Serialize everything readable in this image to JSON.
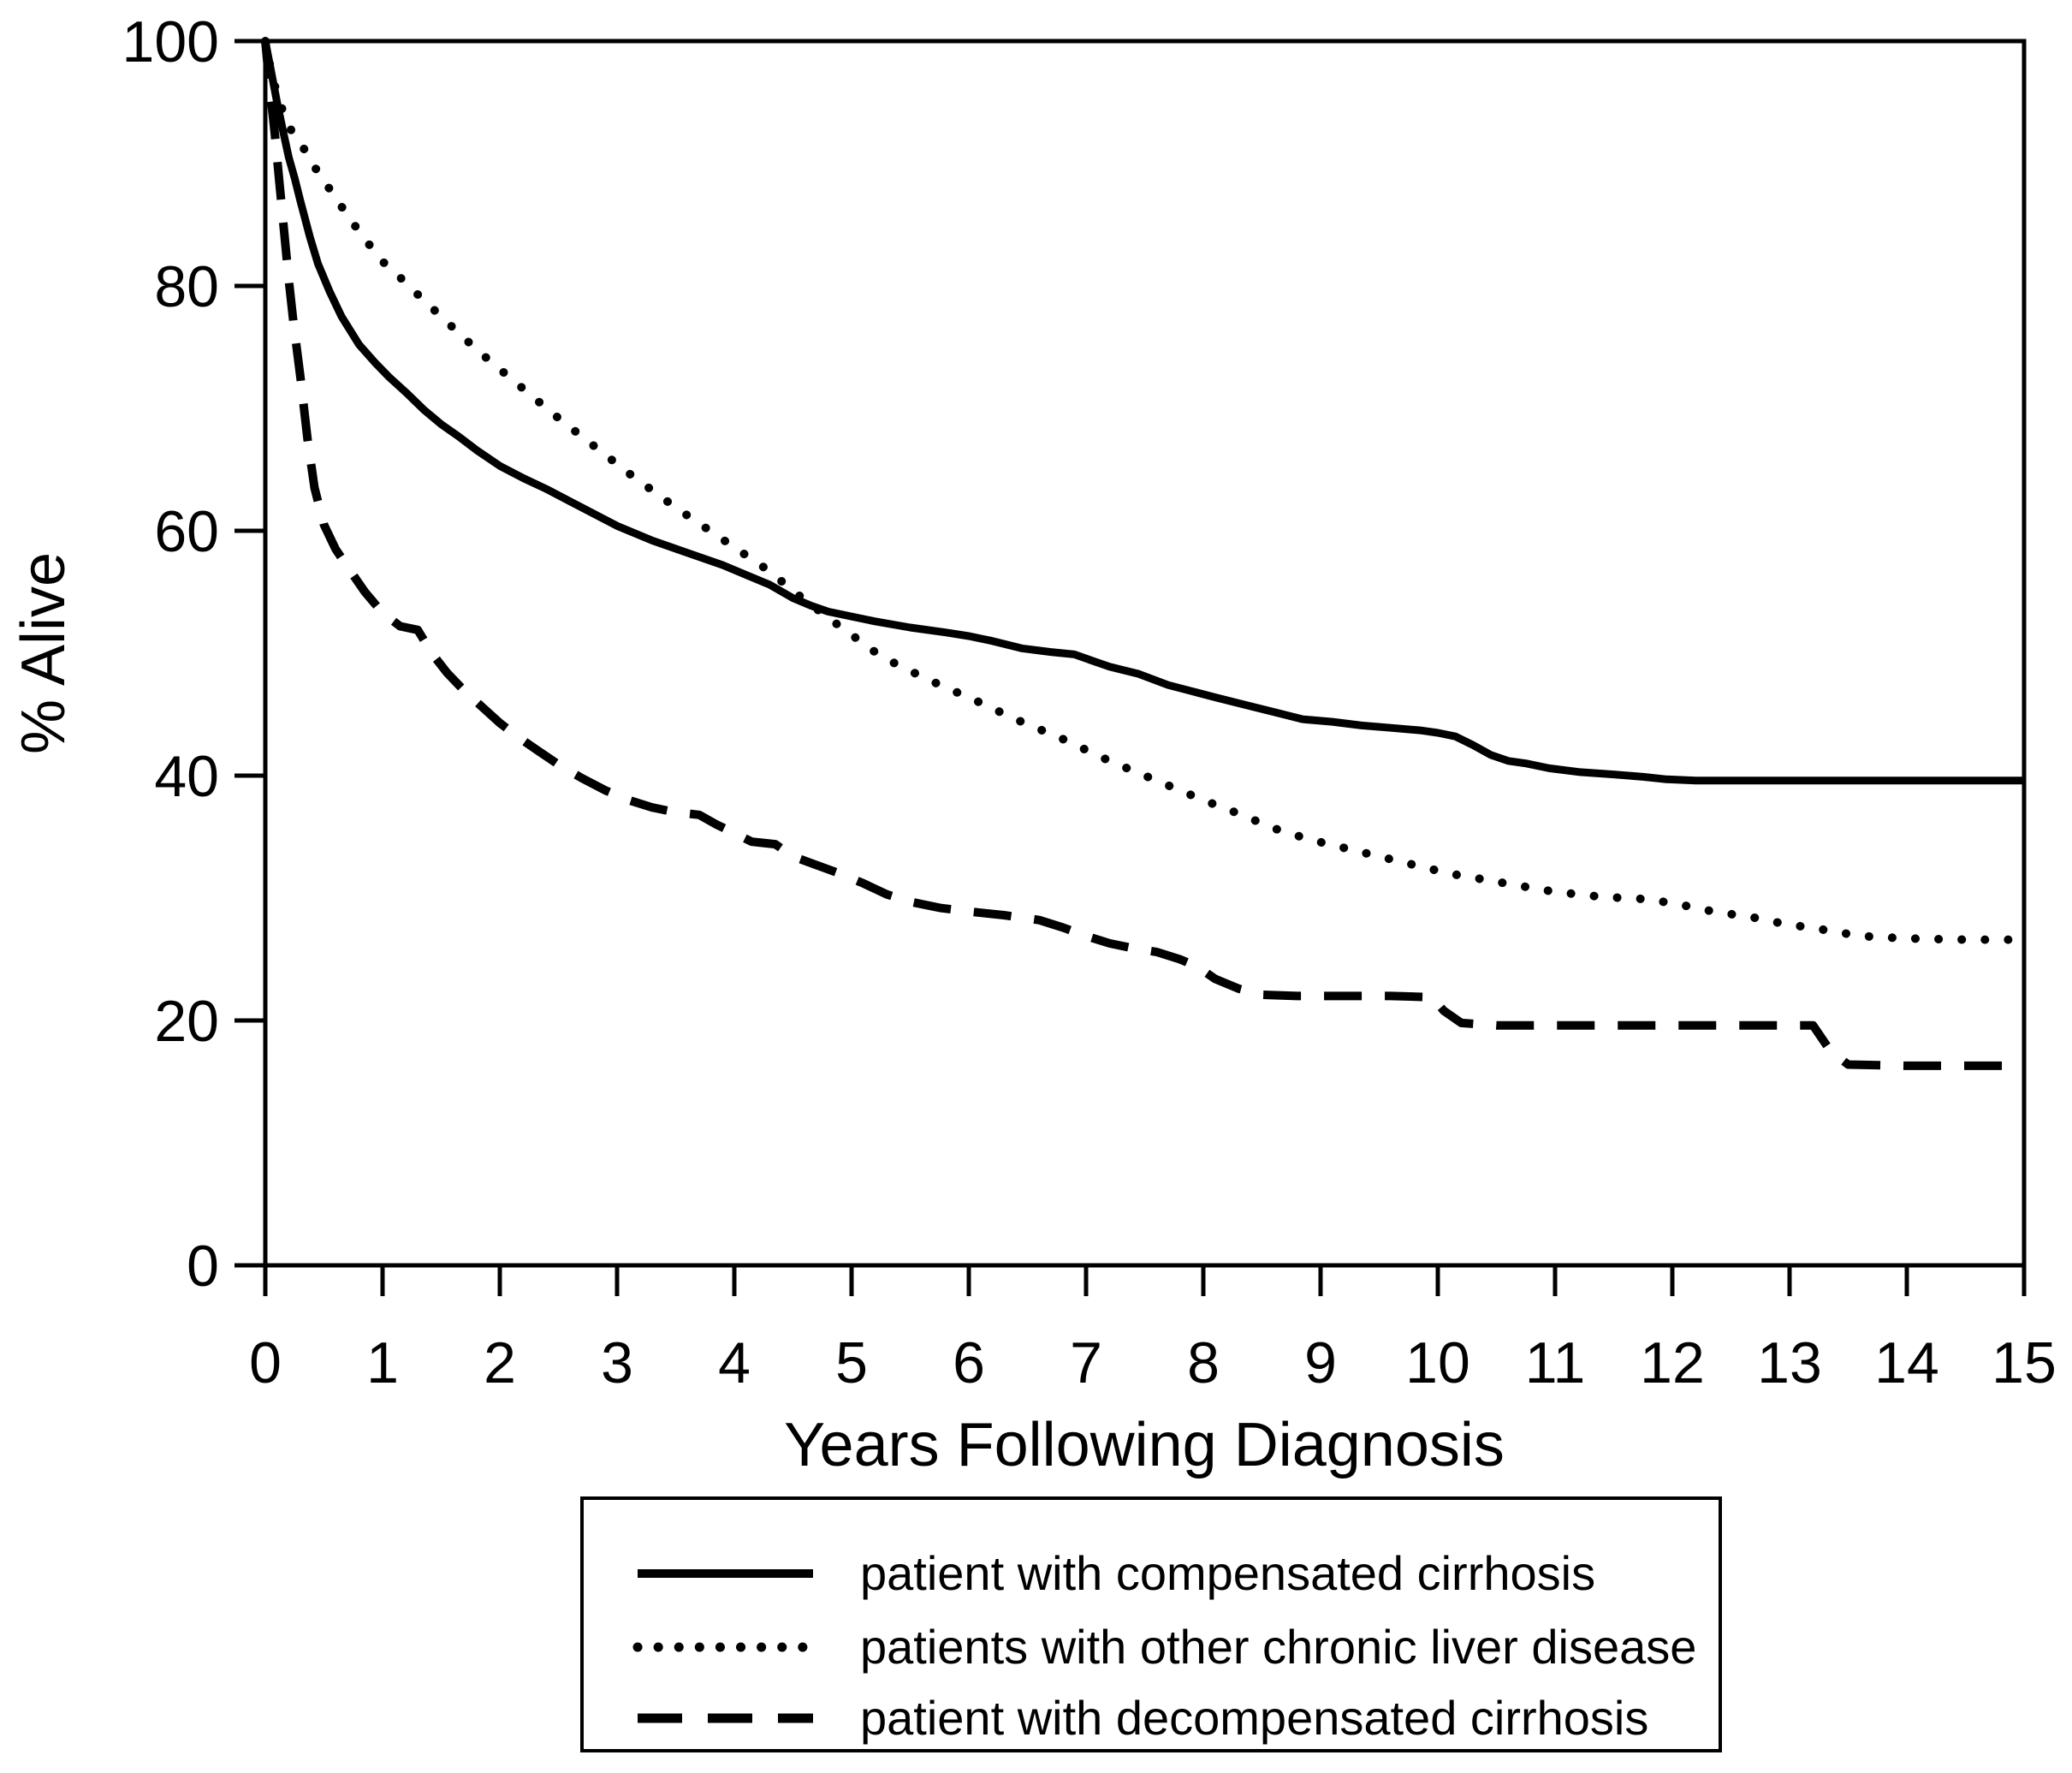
{
  "colors": {
    "foreground": "#000000",
    "background": "#ffffff"
  },
  "chart_data": {
    "type": "line",
    "title": "",
    "xlabel": "Years Following Diagnosis",
    "ylabel": "% Alive",
    "xlim": [
      0,
      15
    ],
    "ylim": [
      0,
      100
    ],
    "x_ticks": [
      0,
      1,
      2,
      3,
      4,
      5,
      6,
      7,
      8,
      9,
      10,
      11,
      12,
      13,
      14,
      15
    ],
    "y_ticks": [
      0,
      20,
      40,
      60,
      80,
      100
    ],
    "grid": false,
    "legend_position": "boxed-below-x-axis",
    "series": [
      {
        "name": "patient with compensated cirrhosis",
        "style": "solid",
        "points": [
          [
            0,
            100
          ],
          [
            0.05,
            97.5
          ],
          [
            0.1,
            95
          ],
          [
            0.15,
            92.7
          ],
          [
            0.2,
            90.5
          ],
          [
            0.25,
            88.8
          ],
          [
            0.3,
            86.9
          ],
          [
            0.38,
            84
          ],
          [
            0.45,
            81.8
          ],
          [
            0.55,
            79.5
          ],
          [
            0.65,
            77.5
          ],
          [
            0.8,
            75.2
          ],
          [
            0.93,
            73.8
          ],
          [
            1.05,
            72.6
          ],
          [
            1.2,
            71.3
          ],
          [
            1.35,
            69.9
          ],
          [
            1.5,
            68.7
          ],
          [
            1.65,
            67.7
          ],
          [
            1.8,
            66.6
          ],
          [
            2.0,
            65.3
          ],
          [
            2.2,
            64.3
          ],
          [
            2.4,
            63.4
          ],
          [
            2.6,
            62.4
          ],
          [
            2.8,
            61.4
          ],
          [
            3.0,
            60.4
          ],
          [
            3.3,
            59.2
          ],
          [
            3.6,
            58.2
          ],
          [
            3.9,
            57.2
          ],
          [
            4.1,
            56.4
          ],
          [
            4.3,
            55.6
          ],
          [
            4.5,
            54.5
          ],
          [
            4.65,
            53.9
          ],
          [
            4.8,
            53.4
          ],
          [
            5.0,
            53.0
          ],
          [
            5.2,
            52.6
          ],
          [
            5.5,
            52.1
          ],
          [
            5.8,
            51.7
          ],
          [
            6.0,
            51.4
          ],
          [
            6.2,
            51.0
          ],
          [
            6.45,
            50.4
          ],
          [
            6.7,
            50.1
          ],
          [
            6.9,
            49.9
          ],
          [
            7.05,
            49.4
          ],
          [
            7.2,
            48.9
          ],
          [
            7.45,
            48.3
          ],
          [
            7.7,
            47.4
          ],
          [
            7.9,
            46.9
          ],
          [
            8.1,
            46.4
          ],
          [
            8.35,
            45.8
          ],
          [
            8.6,
            45.2
          ],
          [
            8.85,
            44.6
          ],
          [
            9.1,
            44.4
          ],
          [
            9.35,
            44.1
          ],
          [
            9.6,
            43.9
          ],
          [
            9.85,
            43.7
          ],
          [
            10.0,
            43.5
          ],
          [
            10.15,
            43.2
          ],
          [
            10.3,
            42.5
          ],
          [
            10.45,
            41.7
          ],
          [
            10.6,
            41.2
          ],
          [
            10.75,
            41.0
          ],
          [
            10.95,
            40.6
          ],
          [
            11.2,
            40.3
          ],
          [
            11.5,
            40.1
          ],
          [
            11.75,
            39.9
          ],
          [
            11.95,
            39.7
          ],
          [
            12.2,
            39.6
          ],
          [
            13.0,
            39.6
          ],
          [
            14.0,
            39.6
          ],
          [
            15,
            39.6
          ]
        ]
      },
      {
        "name": "patients with other chronic liver disease",
        "style": "dotted",
        "points": [
          [
            0,
            100
          ],
          [
            0.06,
            97
          ],
          [
            0.13,
            94.8
          ],
          [
            0.2,
            93
          ],
          [
            0.3,
            91.7
          ],
          [
            0.4,
            90
          ],
          [
            0.5,
            88.6
          ],
          [
            0.62,
            86.9
          ],
          [
            0.75,
            85.1
          ],
          [
            0.9,
            83.2
          ],
          [
            1.0,
            82
          ],
          [
            1.15,
            80.7
          ],
          [
            1.3,
            79.3
          ],
          [
            1.5,
            77.5
          ],
          [
            1.7,
            75.7
          ],
          [
            1.9,
            74
          ],
          [
            2.1,
            72.4
          ],
          [
            2.3,
            70.8
          ],
          [
            2.5,
            69.2
          ],
          [
            2.7,
            67.7
          ],
          [
            2.9,
            66.2
          ],
          [
            3.1,
            64.7
          ],
          [
            3.3,
            63.3
          ],
          [
            3.5,
            61.9
          ],
          [
            3.7,
            60.6
          ],
          [
            3.9,
            59.3
          ],
          [
            4.1,
            58
          ],
          [
            4.3,
            56.7
          ],
          [
            4.5,
            55.1
          ],
          [
            4.65,
            54
          ],
          [
            4.8,
            52.9
          ],
          [
            5.0,
            51.5
          ],
          [
            5.2,
            50.1
          ],
          [
            5.4,
            49
          ],
          [
            5.6,
            48.1
          ],
          [
            5.8,
            47.2
          ],
          [
            6.0,
            46.4
          ],
          [
            6.2,
            45.5
          ],
          [
            6.4,
            44.6
          ],
          [
            6.6,
            43.8
          ],
          [
            6.8,
            43
          ],
          [
            7.0,
            42.1
          ],
          [
            7.2,
            41.2
          ],
          [
            7.45,
            40.2
          ],
          [
            7.7,
            39.2
          ],
          [
            8.0,
            38
          ],
          [
            8.3,
            36.9
          ],
          [
            8.6,
            35.7
          ],
          [
            8.9,
            34.8
          ],
          [
            9.2,
            34.1
          ],
          [
            9.5,
            33.4
          ],
          [
            9.8,
            32.7
          ],
          [
            10.1,
            32
          ],
          [
            10.4,
            31.5
          ],
          [
            10.7,
            31
          ],
          [
            11.0,
            30.5
          ],
          [
            11.4,
            30.1
          ],
          [
            11.8,
            29.9
          ],
          [
            12.1,
            29.4
          ],
          [
            12.35,
            28.9
          ],
          [
            12.7,
            28.4
          ],
          [
            12.95,
            27.9
          ],
          [
            13.3,
            27.4
          ],
          [
            13.6,
            26.9
          ],
          [
            14.0,
            26.7
          ],
          [
            14.5,
            26.6
          ],
          [
            15,
            26.6
          ]
        ]
      },
      {
        "name": "patient with decompensated cirrhosis",
        "style": "dashed",
        "points": [
          [
            0,
            100
          ],
          [
            0.04,
            96
          ],
          [
            0.08,
            92.5
          ],
          [
            0.12,
            88.5
          ],
          [
            0.16,
            84.5
          ],
          [
            0.2,
            80.5
          ],
          [
            0.24,
            77
          ],
          [
            0.3,
            72.5
          ],
          [
            0.36,
            67.5
          ],
          [
            0.42,
            63.5
          ],
          [
            0.5,
            60.5
          ],
          [
            0.6,
            58.5
          ],
          [
            0.72,
            56.8
          ],
          [
            0.85,
            55
          ],
          [
            1.0,
            53.3
          ],
          [
            1.15,
            52.2
          ],
          [
            1.3,
            51.9
          ],
          [
            1.42,
            50
          ],
          [
            1.55,
            48.4
          ],
          [
            1.7,
            46.9
          ],
          [
            1.85,
            45.6
          ],
          [
            2.0,
            44.3
          ],
          [
            2.15,
            43.2
          ],
          [
            2.3,
            42.2
          ],
          [
            2.5,
            40.9
          ],
          [
            2.7,
            39.8
          ],
          [
            2.9,
            38.8
          ],
          [
            3.1,
            38
          ],
          [
            3.3,
            37.4
          ],
          [
            3.5,
            37
          ],
          [
            3.7,
            36.8
          ],
          [
            3.85,
            36
          ],
          [
            4.0,
            35.3
          ],
          [
            4.15,
            34.6
          ],
          [
            4.35,
            34.4
          ],
          [
            4.5,
            33.4
          ],
          [
            4.7,
            32.7
          ],
          [
            4.9,
            32
          ],
          [
            5.1,
            31.2
          ],
          [
            5.3,
            30.3
          ],
          [
            5.5,
            29.7
          ],
          [
            5.75,
            29.2
          ],
          [
            6.0,
            28.9
          ],
          [
            6.3,
            28.6
          ],
          [
            6.6,
            28.2
          ],
          [
            6.8,
            27.6
          ],
          [
            7.0,
            26.9
          ],
          [
            7.2,
            26.3
          ],
          [
            7.4,
            25.9
          ],
          [
            7.6,
            25.6
          ],
          [
            7.8,
            25
          ],
          [
            7.95,
            24.4
          ],
          [
            8.1,
            23.4
          ],
          [
            8.3,
            22.6
          ],
          [
            8.5,
            22.1
          ],
          [
            8.8,
            22
          ],
          [
            9.2,
            22
          ],
          [
            9.6,
            22
          ],
          [
            9.95,
            21.9
          ],
          [
            10.05,
            20.8
          ],
          [
            10.2,
            19.8
          ],
          [
            10.5,
            19.6
          ],
          [
            11.0,
            19.6
          ],
          [
            11.5,
            19.6
          ],
          [
            12.0,
            19.6
          ],
          [
            12.6,
            19.6
          ],
          [
            13.2,
            19.6
          ],
          [
            13.35,
            17.5
          ],
          [
            13.5,
            16.4
          ],
          [
            14.0,
            16.3
          ],
          [
            14.5,
            16.3
          ],
          [
            15,
            16.3
          ]
        ]
      }
    ]
  }
}
